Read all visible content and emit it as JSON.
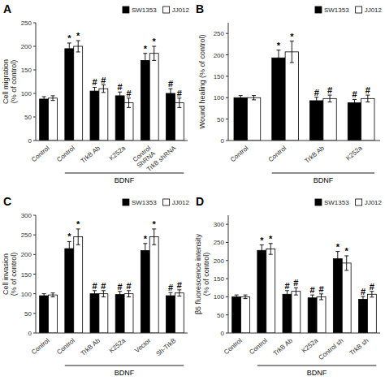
{
  "chart_data": [
    {
      "type": "bar",
      "title": "A",
      "ylabel": "Cell migration\n(% of control)",
      "categories": [
        "Control",
        "Control",
        "TrkB Ab",
        "K252a",
        "Control\nShRNA",
        "TrkB shRNA"
      ],
      "series": [
        {
          "name": "SW1353",
          "color": "#000000",
          "values": [
            88,
            195,
            105,
            95,
            170,
            100
          ],
          "errors": [
            5,
            12,
            8,
            8,
            15,
            10
          ],
          "annotations": [
            null,
            "*",
            "#",
            "#",
            "*",
            "#"
          ]
        },
        {
          "name": "JJ012",
          "color": "#ffffff",
          "values": [
            90,
            200,
            110,
            80,
            185,
            80
          ],
          "errors": [
            5,
            12,
            8,
            10,
            15,
            10
          ],
          "annotations": [
            null,
            "*",
            "#",
            "#",
            "*",
            "#"
          ]
        }
      ],
      "bracket": {
        "text": "BDNF",
        "members": [
          false,
          true,
          true,
          true,
          true,
          true
        ]
      },
      "ylim": [
        0,
        250
      ],
      "yticks": [
        0,
        50,
        100,
        150,
        200,
        250
      ],
      "grid": false,
      "legend": "upper right"
    },
    {
      "type": "bar",
      "title": "B",
      "ylabel": "Wound healing (% of control)",
      "categories": [
        "Control",
        "Control",
        "TrkB Ab",
        "K252a"
      ],
      "series": [
        {
          "name": "SW1353",
          "color": "#000000",
          "values": [
            100,
            193,
            93,
            88
          ],
          "errors": [
            5,
            18,
            8,
            8
          ],
          "annotations": [
            null,
            "*",
            "#",
            "#"
          ]
        },
        {
          "name": "JJ012",
          "color": "#ffffff",
          "values": [
            100,
            207,
            98,
            98
          ],
          "errors": [
            5,
            25,
            8,
            8
          ],
          "annotations": [
            null,
            "*",
            "#",
            "#"
          ]
        }
      ],
      "bracket": {
        "text": "BDNF",
        "members": [
          false,
          true,
          true,
          true
        ]
      },
      "ylim": [
        0,
        275
      ],
      "yticks": [
        0,
        50,
        100,
        150,
        200,
        250
      ],
      "grid": false,
      "legend": "upper right"
    },
    {
      "type": "bar",
      "title": "C",
      "ylabel": "Cell invasion\n(% of control)",
      "categories": [
        "Control",
        "Control",
        "TrkB Ab",
        "K252a",
        "Vector",
        "Sh-TrkB"
      ],
      "series": [
        {
          "name": "SW1353",
          "color": "#000000",
          "values": [
            95,
            215,
            100,
            98,
            210,
            95
          ],
          "errors": [
            5,
            18,
            8,
            8,
            18,
            8
          ],
          "annotations": [
            null,
            "*",
            "#",
            "#",
            "*",
            "#"
          ]
        },
        {
          "name": "JJ012",
          "color": "#ffffff",
          "values": [
            97,
            245,
            100,
            100,
            245,
            102
          ],
          "errors": [
            5,
            20,
            8,
            8,
            20,
            8
          ],
          "annotations": [
            null,
            "*",
            "#",
            "#",
            "*",
            "#"
          ]
        }
      ],
      "bracket": {
        "text": "BDNF",
        "members": [
          false,
          true,
          true,
          true,
          true,
          true
        ]
      },
      "ylim": [
        0,
        300
      ],
      "yticks": [
        0,
        50,
        100,
        150,
        200,
        250,
        300
      ],
      "grid": false,
      "legend": "upper right"
    },
    {
      "type": "bar",
      "title": "D",
      "ylabel": "β5 fluorescence intensity\n(% of control)",
      "categories": [
        "Control",
        "Control",
        "TrkB Ab",
        "K252a",
        "Control sh",
        "TrkB sh"
      ],
      "series": [
        {
          "name": "SW1353",
          "color": "#000000",
          "values": [
            100,
            228,
            107,
            97,
            205,
            93
          ],
          "errors": [
            5,
            15,
            10,
            8,
            20,
            8
          ],
          "annotations": [
            null,
            "*",
            "#",
            "#",
            "*",
            "#"
          ]
        },
        {
          "name": "JJ012",
          "color": "#ffffff",
          "values": [
            100,
            232,
            115,
            100,
            193,
            107
          ],
          "errors": [
            5,
            15,
            10,
            8,
            20,
            8
          ],
          "annotations": [
            null,
            "*",
            "#",
            "#",
            "*",
            "#"
          ]
        }
      ],
      "bracket": {
        "text": "BDNF",
        "members": [
          false,
          true,
          true,
          true,
          true,
          true
        ]
      },
      "ylim": [
        0,
        325
      ],
      "yticks": [
        0,
        50,
        100,
        150,
        200,
        250,
        300
      ],
      "grid": false,
      "legend": "upper right"
    }
  ]
}
